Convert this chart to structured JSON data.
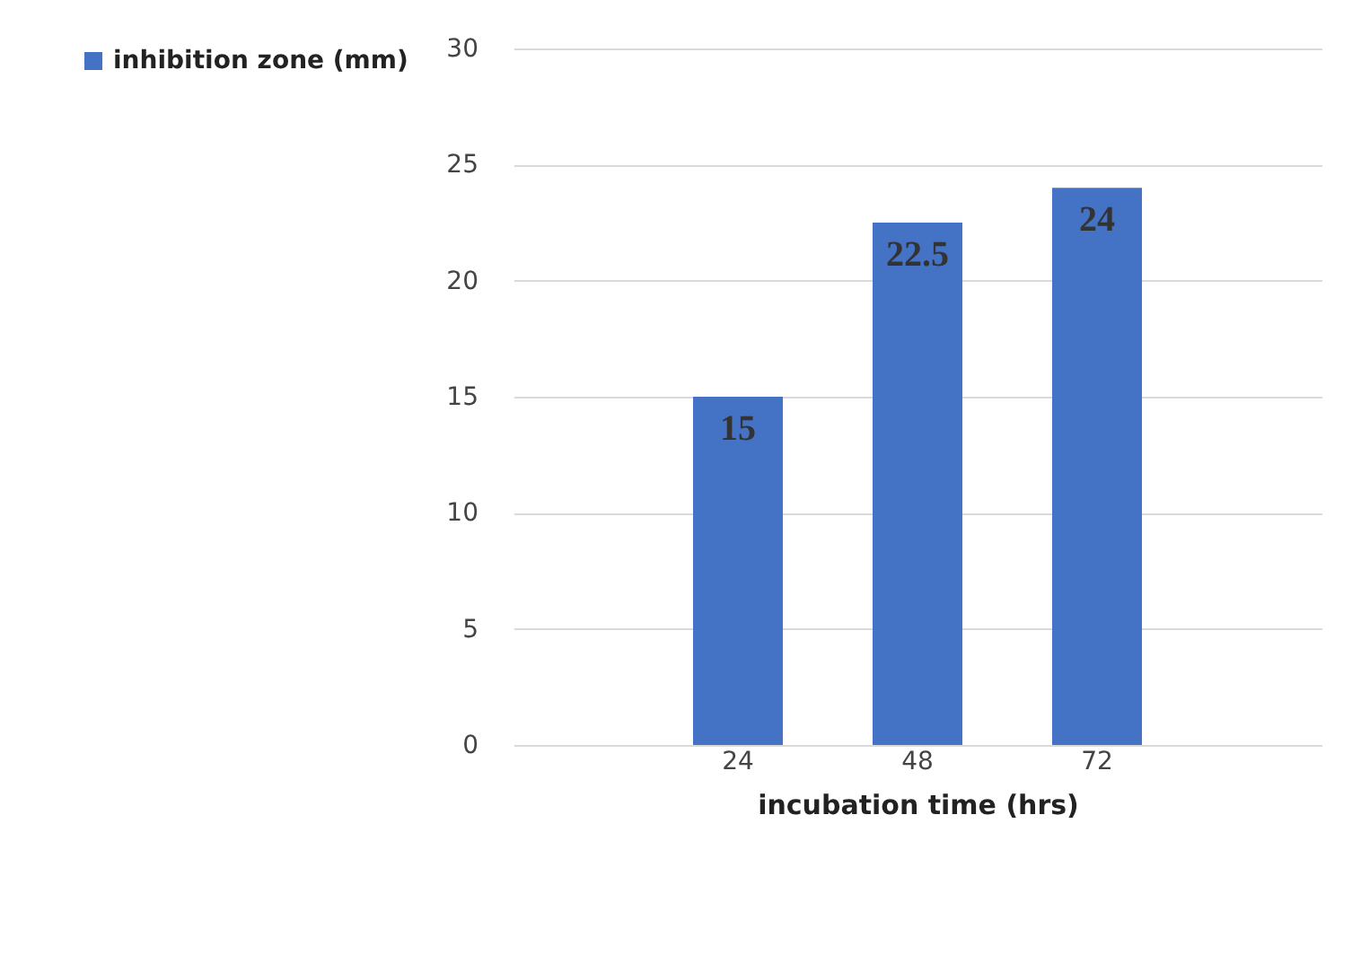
{
  "chart_data": {
    "type": "bar",
    "xlabel": "incubation time (hrs)",
    "categories": [
      null,
      "24",
      "48",
      "72",
      null
    ],
    "series": [
      {
        "name": "inhibition zone (mm)",
        "color": "#4472c4",
        "values": [
          null,
          15,
          22.5,
          24,
          null
        ]
      }
    ],
    "ylim": [
      0,
      30
    ],
    "yticks": [
      0,
      5,
      10,
      15,
      20,
      25,
      30
    ],
    "grid": "y",
    "legend": "left",
    "data_labels": true
  }
}
